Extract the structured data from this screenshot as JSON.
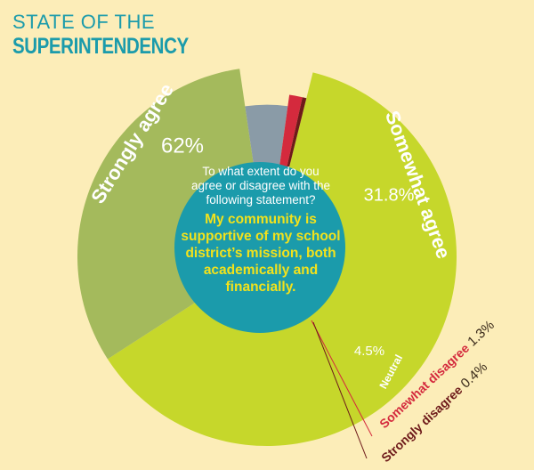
{
  "chart_data": {
    "type": "pie",
    "title": "STATE OF THE",
    "subtitle": "SUPERINTENDENCY",
    "question": "To what extent do you agree or disagree with the following statement?",
    "statement": "My community is supportive of my school district’s mission, both academically and financially.",
    "categories": [
      "Strongly agree",
      "Somewhat agree",
      "Neutral",
      "Somewhat disagree",
      "Strongly disagree"
    ],
    "values": [
      62,
      31.8,
      4.5,
      1.3,
      0.4
    ],
    "value_labels": [
      "62%",
      "31.8%",
      "4.5%",
      "1.3%",
      "0.4%"
    ],
    "colors": [
      "#c6d72b",
      "#a4ba5c",
      "#8a9ba7",
      "#d42a3d",
      "#6e1a1a"
    ]
  }
}
